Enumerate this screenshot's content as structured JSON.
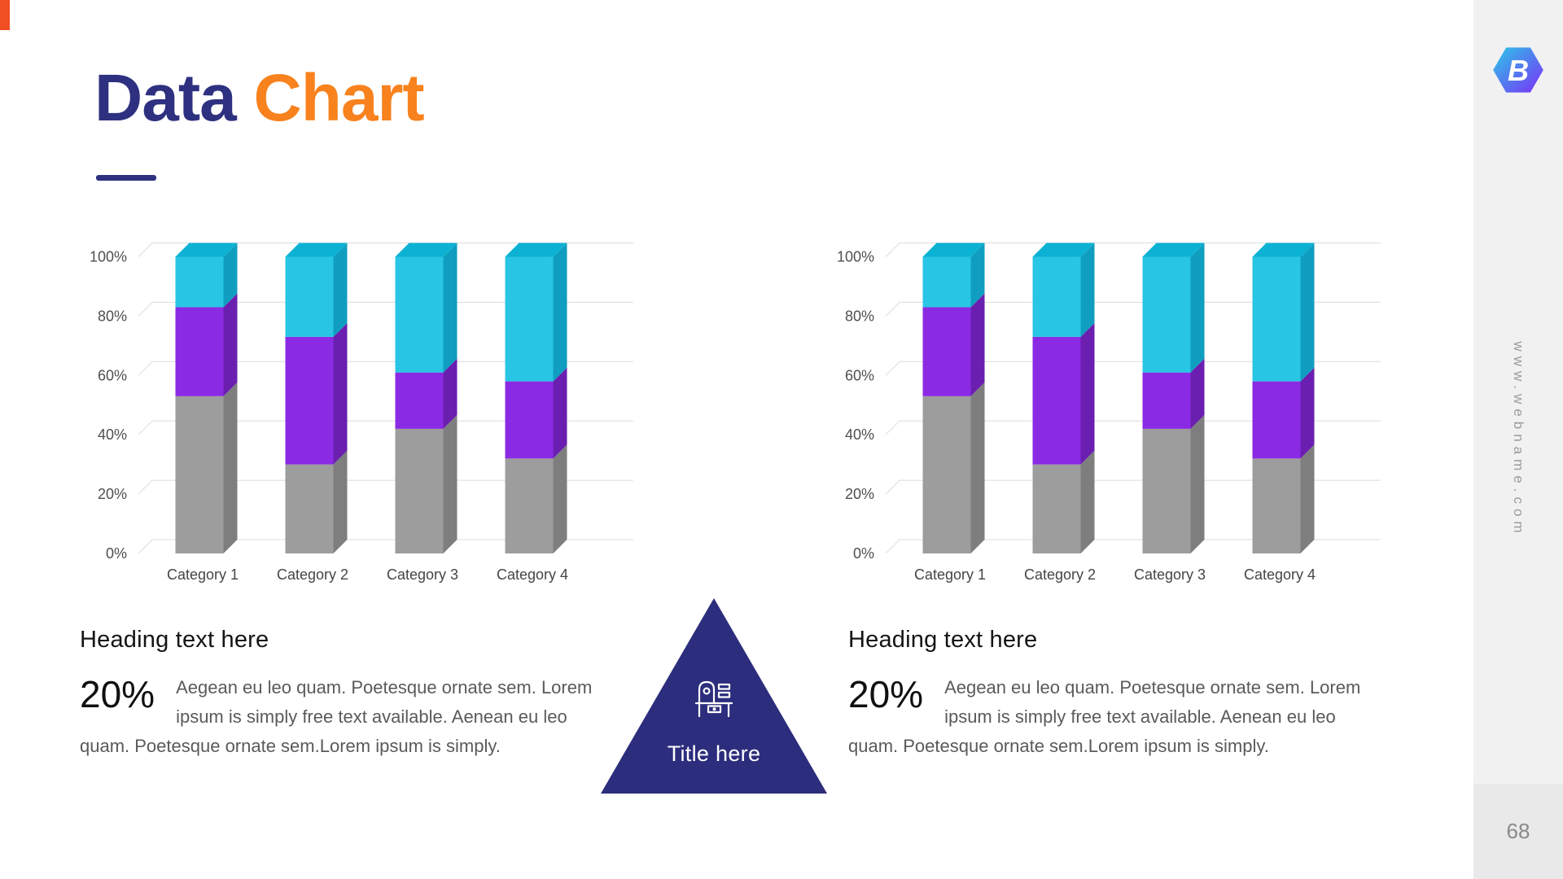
{
  "slide": {
    "title": {
      "part1": "Data",
      "part2": "Chart"
    },
    "page_number": "68",
    "website": "www.webname.com"
  },
  "triangle": {
    "label": "Title here"
  },
  "sections": [
    {
      "heading": "Heading text here",
      "stat": "20%",
      "body": "Aegean eu leo quam. Poetesque ornate sem. Lorem ipsum is simply free text available. Aenean eu leo quam. Poetesque ornate sem.Lorem ipsum is simply."
    },
    {
      "heading": "Heading text here",
      "stat": "20%",
      "body": "Aegean eu leo quam. Poetesque ornate sem. Lorem ipsum is simply free text available. Aenean eu leo quam. Poetesque ornate sem.Lorem ipsum is simply."
    }
  ],
  "colors": {
    "title_navy": "#2e3180",
    "title_orange": "#f8821d",
    "triangle_navy": "#2c2d7c",
    "accent_strip": "#f04e23",
    "grid": "#dcdcdc"
  },
  "chart_data": [
    {
      "type": "bar",
      "stacked": true,
      "title": "",
      "xlabel": "",
      "ylabel": "",
      "ylim": [
        0,
        100
      ],
      "grid": true,
      "legend": false,
      "y_ticks": [
        "0%",
        "20%",
        "40%",
        "60%",
        "80%",
        "100%"
      ],
      "categories": [
        "Category 1",
        "Category 2",
        "Category 3",
        "Category 4"
      ],
      "series": [
        {
          "name": "Segment 1",
          "color": "#9d9d9d",
          "side_color": "#7e7e7e",
          "values": [
            53,
            30,
            42,
            32
          ]
        },
        {
          "name": "Segment 2",
          "color": "#8b2ae3",
          "side_color": "#6a1fb0",
          "values": [
            30,
            43,
            19,
            26
          ]
        },
        {
          "name": "Segment 3",
          "color": "#29c5e5",
          "side_color": "#0f9ec0",
          "top_color": "#0cb2d4",
          "values": [
            17,
            27,
            39,
            42
          ]
        }
      ]
    },
    {
      "type": "bar",
      "stacked": true,
      "title": "",
      "xlabel": "",
      "ylabel": "",
      "ylim": [
        0,
        100
      ],
      "grid": true,
      "legend": false,
      "y_ticks": [
        "0%",
        "20%",
        "40%",
        "60%",
        "80%",
        "100%"
      ],
      "categories": [
        "Category 1",
        "Category 2",
        "Category 3",
        "Category 4"
      ],
      "series": [
        {
          "name": "Segment 1",
          "color": "#9d9d9d",
          "side_color": "#7e7e7e",
          "values": [
            53,
            30,
            42,
            32
          ]
        },
        {
          "name": "Segment 2",
          "color": "#8b2ae3",
          "side_color": "#6a1fb0",
          "values": [
            30,
            43,
            19,
            26
          ]
        },
        {
          "name": "Segment 3",
          "color": "#29c5e5",
          "side_color": "#0f9ec0",
          "top_color": "#0cb2d4",
          "values": [
            17,
            27,
            39,
            42
          ]
        }
      ]
    }
  ]
}
